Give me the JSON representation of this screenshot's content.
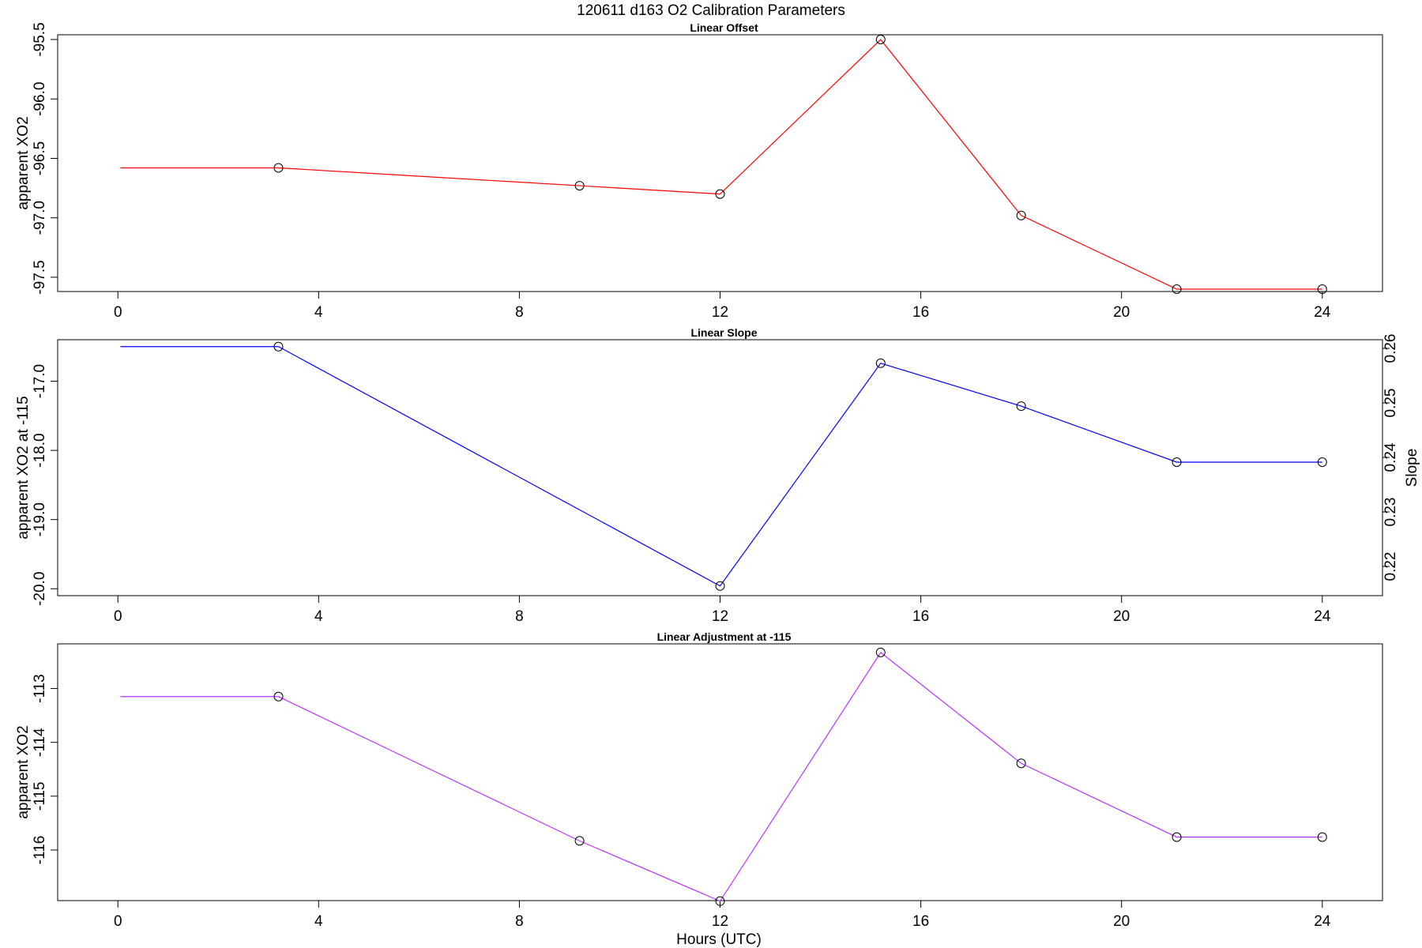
{
  "figure": {
    "title": "120611   d163   O2 Calibration Parameters",
    "xlabel": "Hours (UTC)"
  },
  "chart_data": [
    {
      "type": "line",
      "title": "Linear Offset",
      "xlabel": "",
      "ylabel": "apparent XO2",
      "xlim": [
        -1.2,
        25.2
      ],
      "ylim": [
        -97.62,
        -95.46
      ],
      "xticks": [
        "0",
        "4",
        "8",
        "12",
        "16",
        "20",
        "24"
      ],
      "yticks": [
        "-95.5",
        "-96.0",
        "-96.5",
        "-97.0",
        "-97.5"
      ],
      "line_start": {
        "x": 0.05,
        "y": -96.58
      },
      "series": [
        {
          "color": "#ff0000",
          "x": [
            3.2,
            9.2,
            12.0,
            15.2,
            18.0,
            21.1,
            24.0
          ],
          "y": [
            -96.58,
            -96.73,
            -96.8,
            -95.5,
            -96.98,
            -97.6,
            -97.6
          ]
        }
      ]
    },
    {
      "type": "line",
      "title": "Linear Slope",
      "xlabel": "",
      "ylabel": "apparent XO2 at -115",
      "ylabel_right": "Slope",
      "xlim": [
        -1.2,
        25.2
      ],
      "ylim": [
        -20.1,
        -16.4
      ],
      "xticks": [
        "0",
        "4",
        "8",
        "12",
        "16",
        "20",
        "24"
      ],
      "yticks": [
        "-17.0",
        "-18.0",
        "-19.0",
        "-20.0"
      ],
      "yticks_right": [
        "0.26",
        "0.25",
        "0.24",
        "0.23",
        "0.22"
      ],
      "line_start": {
        "x": 0.05,
        "y": -16.5
      },
      "series": [
        {
          "color": "#0000ff",
          "x": [
            3.2,
            12.0,
            15.2,
            18.0,
            21.1,
            24.0
          ],
          "y": [
            -16.5,
            -19.96,
            -16.74,
            -17.36,
            -18.17,
            -18.17
          ]
        }
      ]
    },
    {
      "type": "line",
      "title": "Linear Adjustment at -115",
      "xlabel": "",
      "ylabel": "apparent XO2",
      "xlim": [
        -1.2,
        25.2
      ],
      "ylim": [
        -116.94,
        -112.17
      ],
      "xticks": [
        "0",
        "4",
        "8",
        "12",
        "16",
        "20",
        "24"
      ],
      "yticks": [
        "-113",
        "-114",
        "-115",
        "-116"
      ],
      "line_start": {
        "x": 0.05,
        "y": -113.15
      },
      "series": [
        {
          "color": "#bb33ff",
          "x": [
            3.2,
            9.2,
            12.0,
            15.2,
            18.0,
            21.1,
            24.0
          ],
          "y": [
            -113.15,
            -115.83,
            -116.95,
            -112.33,
            -114.39,
            -115.76,
            -115.76
          ]
        }
      ]
    }
  ]
}
